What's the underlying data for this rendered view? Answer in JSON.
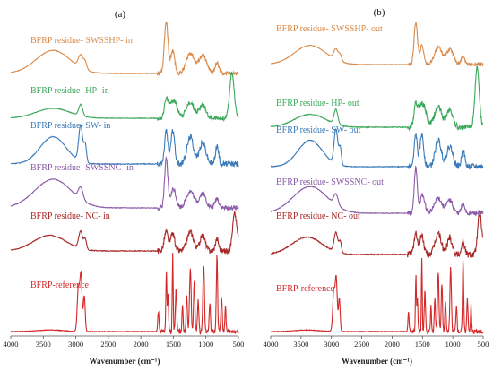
{
  "chart_data": [
    {
      "type": "line",
      "panel_label": "(a)",
      "xlabel": "Wavenumber (cm⁻¹)",
      "xlim": [
        4000,
        500
      ],
      "x_ticks": [
        "4000",
        "3500",
        "3000",
        "2500",
        "2000",
        "1500",
        "1000",
        "500"
      ],
      "series": [
        {
          "name": "BFRP residue- SWSSHP- in",
          "color": "#d98a4a"
        },
        {
          "name": "BFRP residue- HP- in",
          "color": "#3aa85a"
        },
        {
          "name": "BFRP residue- SW- in",
          "color": "#3a7ab8"
        },
        {
          "name": "BFRP residue- SWSSNC- in",
          "color": "#8a5aa8"
        },
        {
          "name": "BFRP residue- NC- in",
          "color": "#a82828"
        },
        {
          "name": "BFRP-reference",
          "color": "#d42828"
        }
      ]
    },
    {
      "type": "line",
      "panel_label": "(b)",
      "xlabel": "Wavenumber (cm⁻¹)",
      "xlim": [
        4000,
        500
      ],
      "x_ticks": [
        "4000",
        "3500",
        "3000",
        "2500",
        "2000",
        "1500",
        "1000",
        "500"
      ],
      "series": [
        {
          "name": "BFRP residue- SWSSHP- out",
          "color": "#d98a4a"
        },
        {
          "name": "BFRP residue- HP- out",
          "color": "#3aa85a"
        },
        {
          "name": "BFRP residue- SW- out",
          "color": "#3a7ab8"
        },
        {
          "name": "BFRP residue- SWSSNC- out",
          "color": "#8a5aa8"
        },
        {
          "name": "BFRP residue- NC- out",
          "color": "#a82828"
        },
        {
          "name": "BFRP-reference",
          "color": "#d42828"
        }
      ]
    }
  ]
}
